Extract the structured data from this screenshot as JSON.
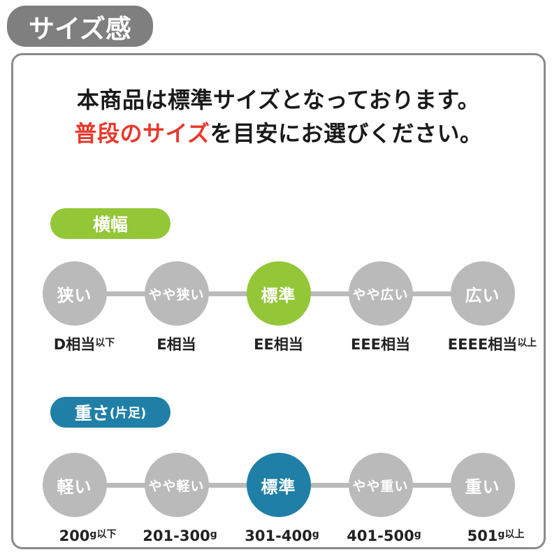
{
  "badge": {
    "label": "サイズ感"
  },
  "intro": {
    "line1": "本商品は標準サイズとなっております。",
    "line2_highlight": "普段のサイズ",
    "line2_rest": "を目安にお選びください。"
  },
  "colors": {
    "badge": "#7f7f7f",
    "card_border": "#8a8a8a",
    "circle_gray": "#bababa",
    "green": "#93c738",
    "blue": "#1f7fa6",
    "red": "#e8382d",
    "text": "#1a1a1a"
  },
  "sections": [
    {
      "name": "横幅",
      "name_suffix": "",
      "accent": "#93c738",
      "active_index": 2,
      "scale": [
        {
          "circle": "狭い",
          "caption": "D相当",
          "caption_suffix": "以下"
        },
        {
          "circle": "やや狭い",
          "caption": "E相当",
          "caption_suffix": ""
        },
        {
          "circle": "標準",
          "caption": "EE相当",
          "caption_suffix": ""
        },
        {
          "circle": "やや広い",
          "caption": "EEE相当",
          "caption_suffix": ""
        },
        {
          "circle": "広い",
          "caption": "EEEE相当",
          "caption_suffix": "以上"
        }
      ]
    },
    {
      "name": "重さ",
      "name_suffix": "(片足)",
      "accent": "#1f7fa6",
      "active_index": 2,
      "scale": [
        {
          "circle": "軽い",
          "caption": "200",
          "caption_suffix": "g以下"
        },
        {
          "circle": "やや軽い",
          "caption": "201-300",
          "caption_suffix": "g"
        },
        {
          "circle": "標準",
          "caption": "301-400",
          "caption_suffix": "g"
        },
        {
          "circle": "やや重い",
          "caption": "401-500",
          "caption_suffix": "g"
        },
        {
          "circle": "重い",
          "caption": "501",
          "caption_suffix": "g以上"
        }
      ]
    }
  ]
}
